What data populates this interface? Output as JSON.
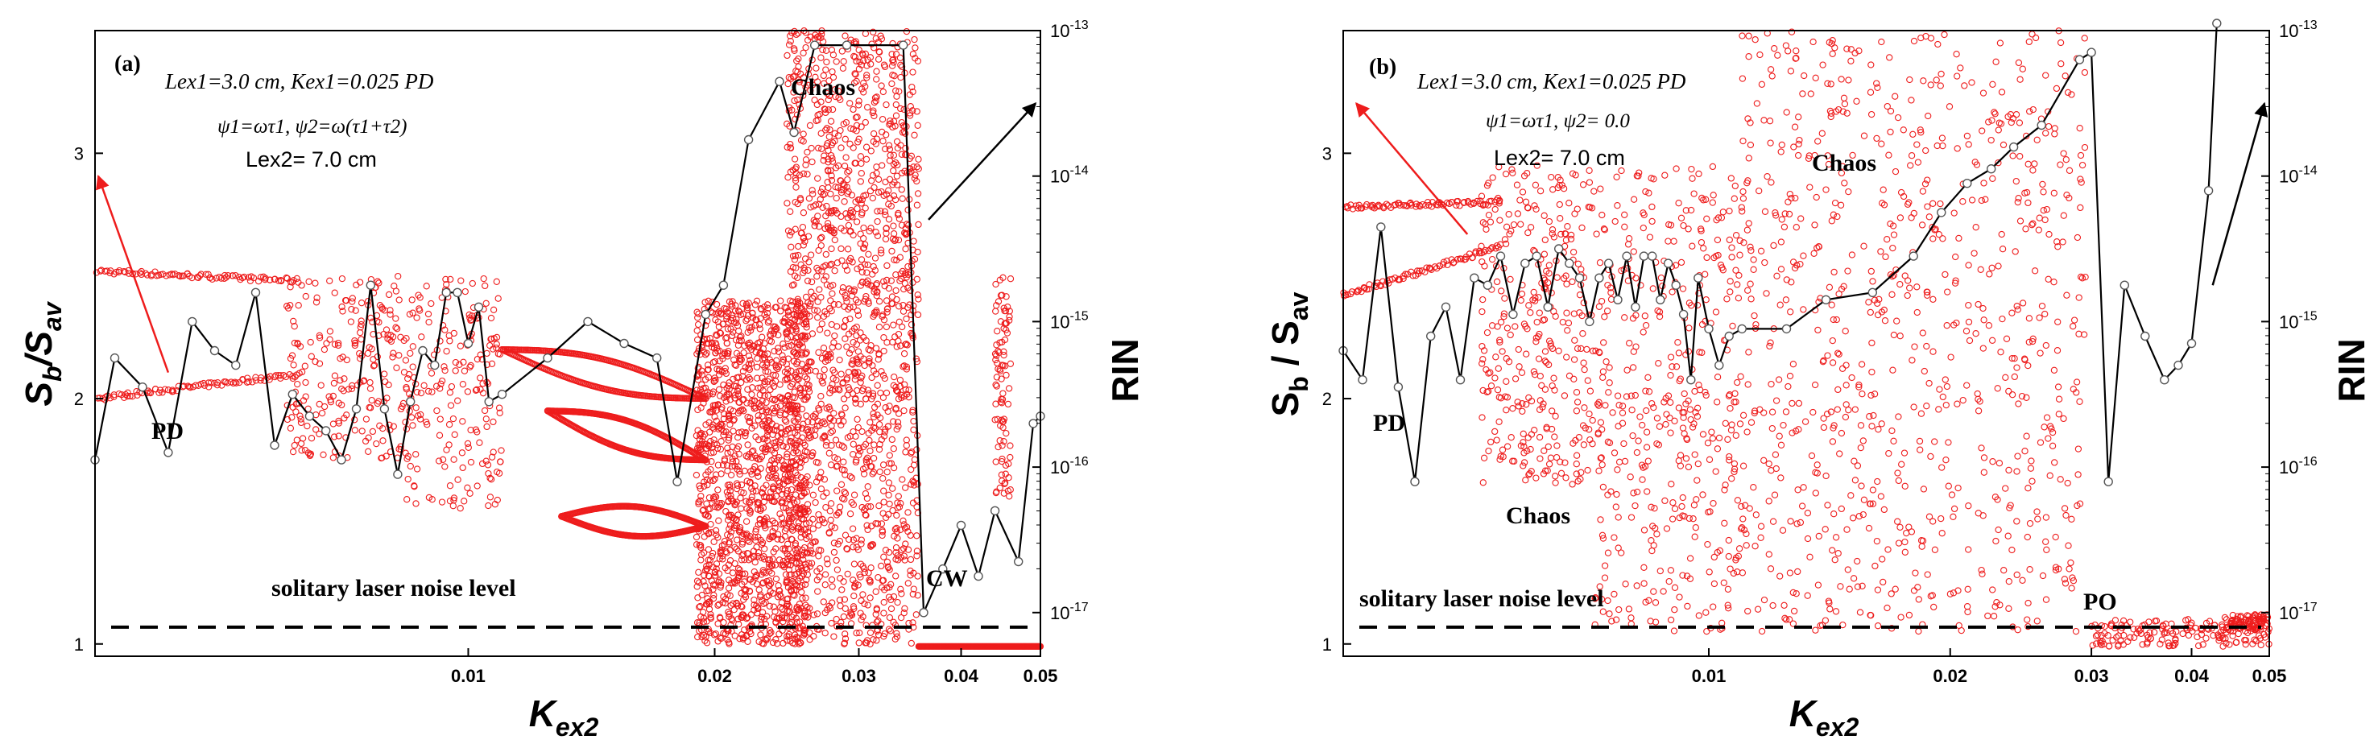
{
  "chart_data": [
    {
      "type": "scatter",
      "panel_label": "(a)",
      "x_scale": "log",
      "xlim": [
        0.0035,
        0.05
      ],
      "ylim_left": [
        0.95,
        3.5
      ],
      "ylim_right_log10": [
        -17.3,
        -13
      ],
      "x_ticks": [
        {
          "value": 0.01,
          "label": "0.01"
        },
        {
          "value": 0.02,
          "label": "0.02"
        },
        {
          "value": 0.03,
          "label": "0.03"
        },
        {
          "value": 0.04,
          "label": "0.04"
        },
        {
          "value": 0.05,
          "label": "0.05"
        }
      ],
      "y_ticks_left": [
        {
          "value": 1,
          "label": "1"
        },
        {
          "value": 2,
          "label": "2"
        },
        {
          "value": 3,
          "label": "3"
        }
      ],
      "y_ticks_right": [
        {
          "exp": -13,
          "label": "-13"
        },
        {
          "exp": -14,
          "label": "-14"
        },
        {
          "exp": -15,
          "label": "-15"
        },
        {
          "exp": -16,
          "label": "-16"
        },
        {
          "exp": -17,
          "label": "-17"
        }
      ],
      "xlabel": "Kex2",
      "ylabel_left": "Sb/Sav",
      "ylabel_right": "RIN",
      "annotations": {
        "param_line1": "Lex1=3.0 cm, Kex1=0.025 PD",
        "param_line2": "ψ1=ωτ1, ψ2=ω(τ1+τ2)",
        "param_line3": "Lex2= 7.0 cm",
        "regime_pd": "PD",
        "regime_chaos": "Chaos",
        "regime_cw": "CW",
        "noise_label": "solitary laser noise level"
      },
      "noise_level_rin_exp": -17.1,
      "rin_series": {
        "name": "RIN",
        "x": [
          0.0035,
          0.0037,
          0.004,
          0.0043,
          0.0046,
          0.0049,
          0.0052,
          0.0055,
          0.0058,
          0.0061,
          0.0064,
          0.0067,
          0.007,
          0.0073,
          0.0076,
          0.0079,
          0.0082,
          0.0085,
          0.0088,
          0.0091,
          0.0094,
          0.0097,
          0.01,
          0.0103,
          0.0106,
          0.011,
          0.0125,
          0.014,
          0.0155,
          0.017,
          0.018,
          0.0195,
          0.0205,
          0.022,
          0.024,
          0.025,
          0.0265,
          0.029,
          0.034,
          0.036,
          0.038,
          0.04,
          0.042,
          0.044,
          0.047,
          0.049,
          0.05
        ],
        "y_log10": [
          -15.95,
          -15.25,
          -15.45,
          -15.9,
          -15.0,
          -15.2,
          -15.3,
          -14.8,
          -15.85,
          -15.5,
          -15.65,
          -15.75,
          -15.95,
          -15.6,
          -14.75,
          -15.6,
          -16.05,
          -15.55,
          -15.2,
          -15.3,
          -14.8,
          -14.8,
          -15.15,
          -14.9,
          -15.55,
          -15.5,
          -15.25,
          -15.0,
          -15.15,
          -15.25,
          -16.1,
          -14.95,
          -14.75,
          -13.75,
          -13.35,
          -13.7,
          -13.1,
          -13.1,
          -13.1,
          -17.0,
          -16.7,
          -16.4,
          -16.75,
          -16.3,
          -16.65,
          -15.7,
          -15.65
        ]
      },
      "arrows": [
        {
          "x_from": 0.0043,
          "y_from_log10": -15.35,
          "x_to": 0.0035,
          "y_to_log10": -14.0,
          "color": "#ee1c1c"
        },
        {
          "x_from": 0.0365,
          "y_from_log10": -14.3,
          "x_to": 0.05,
          "y_to_log10": -13.5,
          "color": "#000000"
        }
      ]
    },
    {
      "type": "scatter",
      "panel_label": "(b)",
      "x_scale": "log",
      "xlim": [
        0.0035,
        0.05
      ],
      "ylim_left": [
        0.95,
        3.5
      ],
      "ylim_right_log10": [
        -17.3,
        -13
      ],
      "x_ticks": [
        {
          "value": 0.01,
          "label": "0.01"
        },
        {
          "value": 0.02,
          "label": "0.02"
        },
        {
          "value": 0.03,
          "label": "0.03"
        },
        {
          "value": 0.04,
          "label": "0.04"
        },
        {
          "value": 0.05,
          "label": "0.05"
        }
      ],
      "y_ticks_left": [
        {
          "value": 1,
          "label": "1"
        },
        {
          "value": 2,
          "label": "2"
        },
        {
          "value": 3,
          "label": "3"
        }
      ],
      "y_ticks_right": [
        {
          "exp": -13,
          "label": "-13"
        },
        {
          "exp": -14,
          "label": "-14"
        },
        {
          "exp": -15,
          "label": "-15"
        },
        {
          "exp": -16,
          "label": "-16"
        },
        {
          "exp": -17,
          "label": "-17"
        }
      ],
      "xlabel": "Kex2",
      "ylabel_left": "Sb / Sav",
      "ylabel_right": "RIN",
      "annotations": {
        "param_line1": "Lex1=3.0 cm, Kex1=0.025 PD",
        "param_line2": "ψ1=ωτ1, ψ2= 0.0",
        "param_line3": "Lex2= 7.0 cm",
        "regime_pd": "PD",
        "regime_chaos_upper": "Chaos",
        "regime_chaos_lower": "Chaos",
        "regime_po": "PO",
        "noise_label": "solitary laser noise level"
      },
      "noise_level_rin_exp": -17.1,
      "rin_series": {
        "name": "RIN",
        "x": [
          0.0035,
          0.0037,
          0.0039,
          0.0041,
          0.0043,
          0.0045,
          0.0047,
          0.0049,
          0.0051,
          0.0053,
          0.0055,
          0.0057,
          0.0059,
          0.0061,
          0.0063,
          0.0065,
          0.0067,
          0.0069,
          0.0071,
          0.0073,
          0.0075,
          0.0077,
          0.0079,
          0.0081,
          0.0083,
          0.0085,
          0.0087,
          0.0089,
          0.0091,
          0.0093,
          0.0095,
          0.0097,
          0.01,
          0.0103,
          0.0106,
          0.011,
          0.0125,
          0.014,
          0.016,
          0.018,
          0.0195,
          0.021,
          0.0225,
          0.024,
          0.026,
          0.029,
          0.03,
          0.0315,
          0.033,
          0.035,
          0.037,
          0.0385,
          0.04,
          0.042,
          0.043
        ],
        "y_log10": [
          -15.2,
          -15.4,
          -14.35,
          -15.45,
          -16.1,
          -15.1,
          -14.9,
          -15.4,
          -14.7,
          -14.75,
          -14.55,
          -14.95,
          -14.6,
          -14.55,
          -14.9,
          -14.5,
          -14.6,
          -14.7,
          -15.0,
          -14.7,
          -14.6,
          -14.85,
          -14.55,
          -14.9,
          -14.55,
          -14.55,
          -14.85,
          -14.6,
          -14.75,
          -14.95,
          -15.4,
          -14.7,
          -15.05,
          -15.3,
          -15.1,
          -15.05,
          -15.05,
          -14.85,
          -14.8,
          -14.55,
          -14.25,
          -14.05,
          -13.95,
          -13.8,
          -13.65,
          -13.2,
          -13.15,
          -16.1,
          -14.75,
          -15.1,
          -15.4,
          -15.3,
          -15.15,
          -14.1,
          -12.95
        ]
      },
      "arrows": [
        {
          "x_from": 0.005,
          "y_from_log10": -14.4,
          "x_to": 0.0036,
          "y_to_log10": -13.5,
          "color": "#ee1c1c"
        },
        {
          "x_from": 0.0425,
          "y_from_log10": -14.75,
          "x_to": 0.05,
          "y_to_log10": -13.5,
          "color": "#000000"
        }
      ]
    }
  ]
}
